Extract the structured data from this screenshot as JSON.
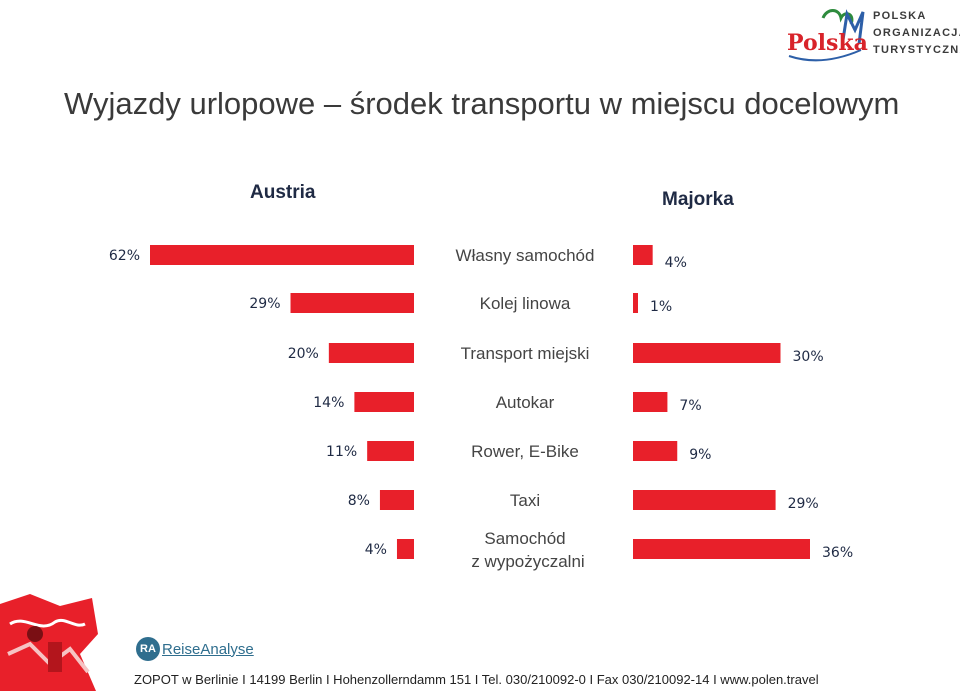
{
  "title": "Wyjazdy urlopowe – środek transportu w miejscu docelowym",
  "logo": {
    "lines": [
      "POLSKA",
      "ORGANIZACJA",
      "TURYSTYCZNA"
    ],
    "wordmark": "Polska"
  },
  "reise_logo": {
    "mark": "RA",
    "name": "ReiseAnalyse"
  },
  "footer": "ZOPOT w Berlinie I 14199 Berlin I Hohenzollerndamm 151 I Tel. 030/210092-0 I Fax 030/210092-14 I www.polen.travel",
  "colors": {
    "bar": "#e8202a",
    "title": "#1f2a44"
  },
  "chart_data": [
    {
      "type": "bar",
      "title": "Austria",
      "orientation": "horizontal",
      "direction": "right-to-left",
      "categories": [
        "Własny samochód",
        "Kolej linowa",
        "Transport miejski",
        "Autokar",
        "Rower, E-Bike",
        "Taxi",
        "Samochód z wypożyczalni"
      ],
      "values": [
        62,
        29,
        20,
        14,
        11,
        8,
        4
      ],
      "value_labels": [
        "62%",
        "29%",
        "20%",
        "14%",
        "11%",
        "8%",
        "4%"
      ],
      "unit": "%"
    },
    {
      "type": "bar",
      "title": "Majorka",
      "orientation": "horizontal",
      "direction": "left-to-right",
      "categories": [
        "Własny samochód",
        "Kolej linowa",
        "Transport miejski",
        "Autokar",
        "Rower, E-Bike",
        "Taxi",
        "Samochód z wypożyczalni"
      ],
      "values": [
        4,
        1,
        30,
        7,
        9,
        29,
        36
      ],
      "value_labels": [
        "4%",
        "1%",
        "30%",
        "7%",
        "9%",
        "29%",
        "36%"
      ],
      "unit": "%"
    }
  ]
}
